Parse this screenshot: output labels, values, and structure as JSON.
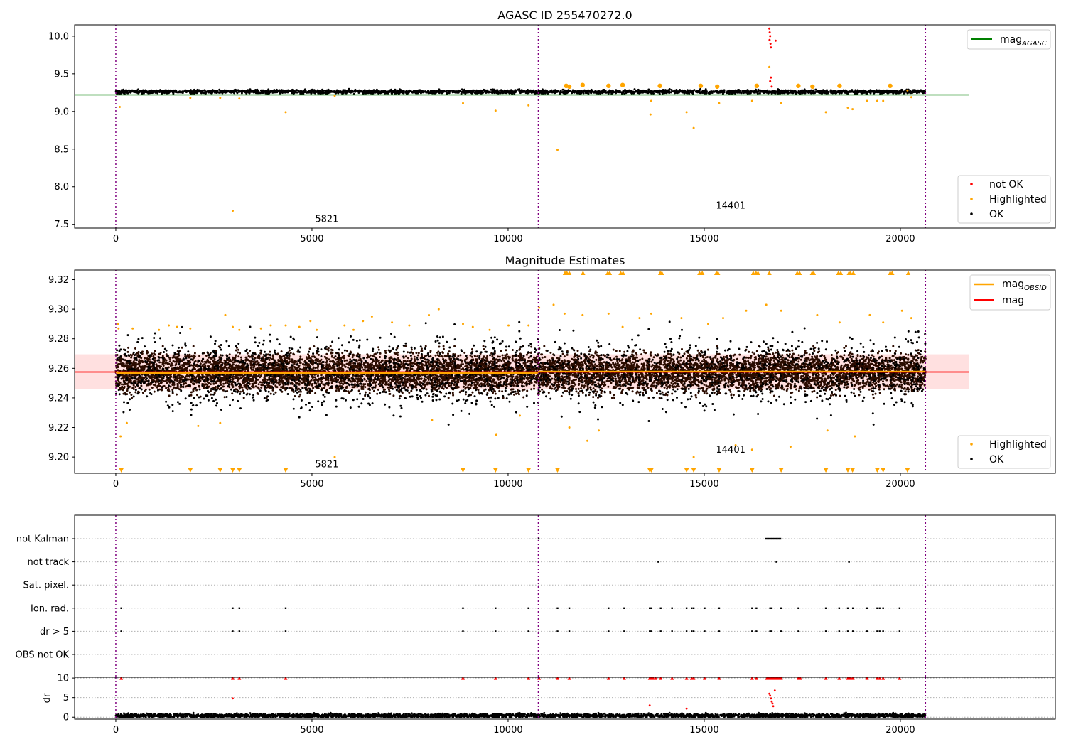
{
  "figure": {
    "title": "AGASC ID 255470272.0"
  },
  "chart_data": [
    {
      "type": "scatter",
      "title": "AGASC ID 255470272.0",
      "xlim": [
        -1050,
        23950
      ],
      "ylim": [
        7.45,
        10.15
      ],
      "x_ticks": [
        0,
        5000,
        10000,
        15000,
        20000
      ],
      "x_tick_labels": [
        "0",
        "5000",
        "10000",
        "15000",
        "20000"
      ],
      "y_ticks": [
        7.5,
        8.0,
        8.5,
        9.0,
        9.5,
        10.0
      ],
      "y_tick_labels": [
        "7.5",
        "8.0",
        "8.5",
        "9.0",
        "9.5",
        "10.0"
      ],
      "grid": false,
      "obsid_boundaries": [
        0,
        10770,
        20640
      ],
      "annotations": [
        {
          "text": "5821",
          "x": 5080,
          "y": 7.53
        },
        {
          "text": "14401",
          "x": 15300,
          "y": 7.71
        }
      ],
      "mag_agasc": 9.22,
      "mag_agasc_span": [
        -1050,
        21750
      ],
      "ok_band": {
        "x_range": [
          0,
          20640
        ],
        "center": 9.26,
        "spread": 0.03
      },
      "series": [
        {
          "name": "not OK",
          "color": "#ff0000",
          "points": [
            [
              16660,
              10.1
            ],
            [
              16670,
              10.05
            ],
            [
              16680,
              10.0
            ],
            [
              16665,
              9.95
            ],
            [
              16690,
              9.9
            ],
            [
              16700,
              9.85
            ],
            [
              16820,
              9.94
            ],
            [
              16700,
              9.45
            ],
            [
              16680,
              9.4
            ],
            [
              16720,
              9.33
            ]
          ]
        },
        {
          "name": "Highlighted",
          "color": "#ffa500",
          "points": [
            [
              100,
              9.06
            ],
            [
              1900,
              9.18
            ],
            [
              2660,
              9.18
            ],
            [
              2980,
              7.68
            ],
            [
              3150,
              9.17
            ],
            [
              4330,
              8.99
            ],
            [
              5580,
              9.21
            ],
            [
              8850,
              9.11
            ],
            [
              9680,
              9.01
            ],
            [
              10520,
              9.08
            ],
            [
              11260,
              8.49
            ],
            [
              11480,
              9.34
            ],
            [
              11560,
              9.33
            ],
            [
              11900,
              9.35
            ],
            [
              12560,
              9.34
            ],
            [
              12920,
              9.35
            ],
            [
              13630,
              8.96
            ],
            [
              13650,
              9.14
            ],
            [
              13870,
              9.34
            ],
            [
              14550,
              8.99
            ],
            [
              14730,
              8.78
            ],
            [
              14910,
              9.34
            ],
            [
              15380,
              9.11
            ],
            [
              15330,
              9.33
            ],
            [
              16220,
              9.14
            ],
            [
              16340,
              9.34
            ],
            [
              16660,
              9.59
            ],
            [
              16960,
              9.11
            ],
            [
              17400,
              9.34
            ],
            [
              17760,
              9.33
            ],
            [
              18100,
              8.99
            ],
            [
              18450,
              9.34
            ],
            [
              18660,
              9.05
            ],
            [
              18780,
              9.03
            ],
            [
              19150,
              9.14
            ],
            [
              19410,
              9.14
            ],
            [
              19560,
              9.14
            ],
            [
              19740,
              9.34
            ],
            [
              20180,
              9.28
            ],
            [
              20280,
              9.19
            ]
          ]
        },
        {
          "name": "OK",
          "color": "#000000",
          "x_range": [
            0,
            20640
          ],
          "center": 9.26,
          "spread": 0.02
        }
      ],
      "legend_line": [
        {
          "label": "mag",
          "sub": "AGASC",
          "color": "#008000"
        }
      ],
      "legend_points": [
        {
          "label": "not OK",
          "color": "#ff0000"
        },
        {
          "label": "Highlighted",
          "color": "#ffa500"
        },
        {
          "label": "OK",
          "color": "#000000"
        }
      ]
    },
    {
      "type": "scatter",
      "title": "Magnitude Estimates",
      "xlim": [
        -1050,
        23950
      ],
      "ylim": [
        9.189,
        9.3265
      ],
      "x_ticks": [
        0,
        5000,
        10000,
        15000,
        20000
      ],
      "x_tick_labels": [
        "0",
        "5000",
        "10000",
        "15000",
        "20000"
      ],
      "y_ticks": [
        9.2,
        9.22,
        9.24,
        9.26,
        9.28,
        9.3,
        9.32
      ],
      "y_tick_labels": [
        "9.20",
        "9.22",
        "9.24",
        "9.26",
        "9.28",
        "9.30",
        "9.32"
      ],
      "grid": false,
      "obsid_boundaries": [
        0,
        10770,
        20640
      ],
      "annotations": [
        {
          "text": "5821",
          "x": 5080,
          "y": 9.193
        },
        {
          "text": "14401",
          "x": 15300,
          "y": 9.203
        }
      ],
      "mag": 9.2575,
      "mag_band": [
        9.246,
        9.2695
      ],
      "mag_span": [
        -1050,
        21750
      ],
      "mag_obsid_segments": [
        {
          "x": [
            0,
            10770
          ],
          "y": 9.2568
        },
        {
          "x": [
            10770,
            20640
          ],
          "y": 9.2578
        }
      ],
      "series": [
        {
          "name": "OK",
          "color": "#000000",
          "x_range": [
            0,
            20640
          ],
          "center": 9.2575,
          "spread": 0.012
        },
        {
          "name": "Highlighted",
          "color": "#ffa500",
          "points": [
            [
              60,
              9.29
            ],
            [
              70,
              9.287
            ],
            [
              120,
              9.214
            ],
            [
              280,
              9.223
            ],
            [
              430,
              9.287
            ],
            [
              1100,
              9.286
            ],
            [
              1350,
              9.289
            ],
            [
              1560,
              9.288
            ],
            [
              1900,
              9.287
            ],
            [
              2100,
              9.221
            ],
            [
              2660,
              9.223
            ],
            [
              2790,
              9.296
            ],
            [
              2980,
              9.288
            ],
            [
              3150,
              9.286
            ],
            [
              3700,
              9.287
            ],
            [
              3950,
              9.289
            ],
            [
              4330,
              9.289
            ],
            [
              4680,
              9.288
            ],
            [
              4960,
              9.292
            ],
            [
              5120,
              9.286
            ],
            [
              5580,
              9.2
            ],
            [
              5830,
              9.289
            ],
            [
              6060,
              9.286
            ],
            [
              6300,
              9.292
            ],
            [
              6530,
              9.295
            ],
            [
              7040,
              9.291
            ],
            [
              7480,
              9.289
            ],
            [
              7980,
              9.296
            ],
            [
              8060,
              9.225
            ],
            [
              8230,
              9.3
            ],
            [
              8850,
              9.29
            ],
            [
              9100,
              9.288
            ],
            [
              9530,
              9.286
            ],
            [
              9700,
              9.215
            ],
            [
              10010,
              9.289
            ],
            [
              10300,
              9.228
            ],
            [
              10520,
              9.289
            ],
            [
              10790,
              9.301
            ],
            [
              11160,
              9.303
            ],
            [
              11440,
              9.297
            ],
            [
              11560,
              9.22
            ],
            [
              11900,
              9.296
            ],
            [
              12020,
              9.211
            ],
            [
              12310,
              9.218
            ],
            [
              12560,
              9.297
            ],
            [
              12920,
              9.288
            ],
            [
              13350,
              9.294
            ],
            [
              13650,
              9.297
            ],
            [
              14420,
              9.294
            ],
            [
              14730,
              9.2
            ],
            [
              15100,
              9.29
            ],
            [
              15480,
              9.294
            ],
            [
              15800,
              9.208
            ],
            [
              16070,
              9.299
            ],
            [
              16220,
              9.205
            ],
            [
              16580,
              9.303
            ],
            [
              16960,
              9.299
            ],
            [
              17200,
              9.207
            ],
            [
              17880,
              9.296
            ],
            [
              18140,
              9.218
            ],
            [
              18450,
              9.291
            ],
            [
              18840,
              9.214
            ],
            [
              19220,
              9.296
            ],
            [
              19560,
              9.291
            ],
            [
              20040,
              9.299
            ],
            [
              20280,
              9.294
            ]
          ]
        },
        {
          "name": "Highlighted (off-scale high)",
          "color": "#ffa500",
          "marker": "triangle-up",
          "x": [
            11450,
            11500,
            11560,
            11910,
            12540,
            12590,
            12870,
            12930,
            13880,
            13920,
            14880,
            14950,
            15310,
            15350,
            16250,
            16320,
            16370,
            16660,
            17370,
            17430,
            17750,
            17790,
            18420,
            18480,
            18690,
            18730,
            18800,
            19740,
            19790,
            20200
          ]
        },
        {
          "name": "Highlighted (off-scale low)",
          "color": "#ffa500",
          "marker": "triangle-down",
          "x": [
            140,
            1900,
            2660,
            2980,
            3150,
            4330,
            8850,
            9680,
            10520,
            11260,
            13610,
            13650,
            14550,
            14730,
            15380,
            16220,
            16960,
            18100,
            18660,
            18780,
            19410,
            19560,
            20180
          ]
        }
      ],
      "legend_line": [
        {
          "label": "mag",
          "sub": "OBSID",
          "color": "#ffa500"
        },
        {
          "label": "mag",
          "sub": "",
          "color": "#ff0000"
        }
      ],
      "legend_points": [
        {
          "label": "Highlighted",
          "color": "#ffa500"
        },
        {
          "label": "OK",
          "color": "#000000"
        }
      ]
    },
    {
      "type": "scatter",
      "title": "",
      "xlim": [
        -1050,
        23950
      ],
      "category_labels": [
        "not Kalman",
        "not track",
        "Sat. pixel.",
        "Ion. rad.",
        "dr > 5",
        "OBS not OK"
      ],
      "obsid_boundaries": [
        0,
        10770,
        20640
      ],
      "grid": true,
      "flags": {
        "not Kalman": [
          16580,
          16620,
          16660,
          16700,
          16740,
          16780,
          16820,
          16860,
          16900,
          16940,
          10780
        ],
        "not track": [
          13830,
          16840,
          18690
        ],
        "Sat. pixel.": [],
        "Ion. rad.": [
          140,
          2980,
          3150,
          4330,
          8850,
          9680,
          10520,
          11260,
          11560,
          12560,
          12960,
          13610,
          13650,
          13890,
          14180,
          14550,
          14680,
          14730,
          15010,
          15380,
          16220,
          16330,
          16680,
          16720,
          16960,
          17400,
          18100,
          18440,
          18660,
          18790,
          19150,
          19410,
          19470,
          19560,
          19980
        ],
        "dr > 5": [
          140,
          2980,
          3150,
          4330,
          8850,
          9680,
          10520,
          11260,
          11560,
          12560,
          12960,
          13610,
          13650,
          13890,
          14180,
          14550,
          14680,
          14730,
          15010,
          15380,
          16220,
          16330,
          16680,
          16720,
          16960,
          17400,
          18100,
          18440,
          18660,
          18790,
          19150,
          19410,
          19470,
          19560,
          19980
        ],
        "OBS not OK": []
      }
    },
    {
      "type": "scatter",
      "title": "",
      "xlim": [
        -1050,
        23950
      ],
      "ylim": [
        -0.5,
        10.2
      ],
      "y_ticks": [
        0,
        5,
        10
      ],
      "y_tick_labels": [
        "0",
        "5",
        "10"
      ],
      "x_ticks": [
        0,
        5000,
        10000,
        15000,
        20000
      ],
      "x_tick_labels": [
        "0",
        "5000",
        "10000",
        "15000",
        "20000"
      ],
      "ylabel": "dr",
      "grid": true,
      "obsid_boundaries": [
        0,
        10770,
        20640
      ],
      "series": [
        {
          "name": "OK",
          "color": "#000000",
          "x_range": [
            0,
            20640
          ],
          "center": 0.4,
          "spread": 0.25
        },
        {
          "name": "not OK",
          "color": "#ff0000",
          "points": [
            [
              16660,
              6.0
            ],
            [
              16680,
              5.5
            ],
            [
              16700,
              4.8
            ],
            [
              16720,
              4.0
            ],
            [
              16740,
              3.5
            ],
            [
              16760,
              2.8
            ],
            [
              16800,
              6.8
            ],
            [
              2980,
              4.8
            ],
            [
              13610,
              3.0
            ],
            [
              14550,
              2.2
            ]
          ]
        },
        {
          "name": "off-scale",
          "color": "#ff0000",
          "marker": "triangle-up",
          "x": [
            140,
            2980,
            3150,
            4330,
            8850,
            9680,
            10520,
            10790,
            11260,
            11560,
            12560,
            12960,
            13610,
            13650,
            13700,
            13760,
            13890,
            14180,
            14550,
            14680,
            14730,
            15010,
            15380,
            16220,
            16330,
            16600,
            16640,
            16680,
            16720,
            16760,
            16800,
            16840,
            16880,
            16920,
            16960,
            17400,
            17450,
            18100,
            18440,
            18660,
            18700,
            18740,
            18790,
            19150,
            19410,
            19470,
            19560,
            19980
          ]
        }
      ]
    }
  ]
}
